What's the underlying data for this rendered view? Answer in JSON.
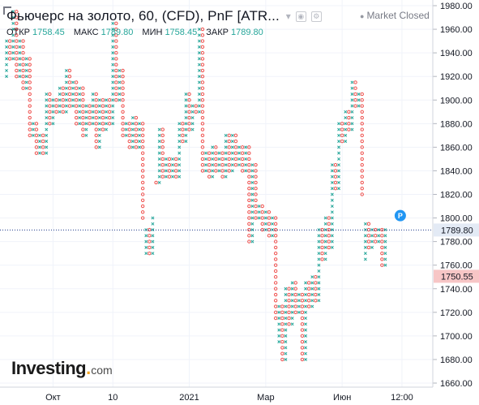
{
  "header": {
    "title": "Фьючерс на золото, 60, (CFD), PnF [ATR...",
    "market_status": "Market Closed",
    "ohlc": [
      {
        "label": "ОТКР",
        "value": "1758.45"
      },
      {
        "label": "МАКС",
        "value": "1789.80"
      },
      {
        "label": "МИН",
        "value": "1758.45"
      },
      {
        "label": "ЗАКР",
        "value": "1789.80"
      }
    ],
    "icons": [
      "dropdown-caret-icon",
      "eye-icon",
      "settings-box-icon",
      "status-dot-icon"
    ]
  },
  "logo": {
    "main": "Investing",
    "tld": "com"
  },
  "colors": {
    "up": "#26a69a",
    "down": "#ef5350",
    "price_line": "#1e3a8a",
    "price_tag_bg": "#e3eaf5",
    "low_tag_bg": "#f7c6c6",
    "grid": "#f0f3fa",
    "axis_text": "#131722",
    "badge": "#2196f3"
  },
  "chart_data": {
    "type": "point-and-figure",
    "y_ticks": [
      1660,
      1680,
      1700,
      1720,
      1740,
      1760,
      1780,
      1800,
      1820,
      1840,
      1860,
      1880,
      1900,
      1920,
      1940,
      1960,
      1980
    ],
    "y_tick_labels": [
      "1660.00",
      "1680.00",
      "1700.00",
      "1720.00",
      "1740.00",
      "1760.00",
      "1780.00",
      "1800.00",
      "1820.00",
      "1840.00",
      "1860.00",
      "1880.00",
      "1900.00",
      "1920.00",
      "1940.00",
      "1960.00",
      "1980.00"
    ],
    "ylim": [
      1655,
      1985
    ],
    "x_ticks": [
      {
        "label": "Окт",
        "col": 14
      },
      {
        "label": "10",
        "col": 32
      },
      {
        "label": "2021",
        "col": 55
      },
      {
        "label": "Мар",
        "col": 78
      },
      {
        "label": "Июн",
        "col": 101
      },
      {
        "label": "12:00",
        "col": 119
      }
    ],
    "n_columns": 120,
    "last_price": 1789.8,
    "last_price_label": "1789.80",
    "low_marker": 1750.55,
    "low_marker_label": "1750.55",
    "badge_label": "P",
    "columns": [
      {
        "t": "X",
        "lo": 1920,
        "hi": 1950
      },
      {
        "t": "O",
        "lo": 1935,
        "hi": 1950
      },
      {
        "t": "X",
        "lo": 1935,
        "hi": 1975
      },
      {
        "t": "O",
        "lo": 1920,
        "hi": 1975
      },
      {
        "t": "X",
        "lo": 1920,
        "hi": 1950
      },
      {
        "t": "O",
        "lo": 1910,
        "hi": 1950
      },
      {
        "t": "X",
        "lo": 1910,
        "hi": 1935
      },
      {
        "t": "O",
        "lo": 1870,
        "hi": 1935
      },
      {
        "t": "X",
        "lo": 1870,
        "hi": 1880
      },
      {
        "t": "O",
        "lo": 1855,
        "hi": 1880
      },
      {
        "t": "X",
        "lo": 1855,
        "hi": 1870
      },
      {
        "t": "O",
        "lo": 1855,
        "hi": 1870
      },
      {
        "t": "X",
        "lo": 1855,
        "hi": 1905
      },
      {
        "t": "O",
        "lo": 1880,
        "hi": 1905
      },
      {
        "t": "X",
        "lo": 1880,
        "hi": 1900
      },
      {
        "t": "O",
        "lo": 1890,
        "hi": 1900
      },
      {
        "t": "X",
        "lo": 1890,
        "hi": 1910
      },
      {
        "t": "O",
        "lo": 1890,
        "hi": 1910
      },
      {
        "t": "X",
        "lo": 1890,
        "hi": 1925
      },
      {
        "t": "O",
        "lo": 1895,
        "hi": 1925
      },
      {
        "t": "X",
        "lo": 1895,
        "hi": 1915
      },
      {
        "t": "O",
        "lo": 1880,
        "hi": 1915
      },
      {
        "t": "X",
        "lo": 1880,
        "hi": 1910
      },
      {
        "t": "O",
        "lo": 1870,
        "hi": 1910
      },
      {
        "t": "X",
        "lo": 1870,
        "hi": 1895
      },
      {
        "t": "O",
        "lo": 1880,
        "hi": 1895
      },
      {
        "t": "X",
        "lo": 1880,
        "hi": 1905
      },
      {
        "t": "O",
        "lo": 1860,
        "hi": 1905
      },
      {
        "t": "X",
        "lo": 1860,
        "hi": 1900
      },
      {
        "t": "O",
        "lo": 1875,
        "hi": 1900
      },
      {
        "t": "X",
        "lo": 1875,
        "hi": 1900
      },
      {
        "t": "O",
        "lo": 1880,
        "hi": 1900
      },
      {
        "t": "X",
        "lo": 1880,
        "hi": 1965
      },
      {
        "t": "O",
        "lo": 1900,
        "hi": 1965
      },
      {
        "t": "X",
        "lo": 1900,
        "hi": 1925
      },
      {
        "t": "O",
        "lo": 1870,
        "hi": 1925
      },
      {
        "t": "X",
        "lo": 1870,
        "hi": 1880
      },
      {
        "t": "O",
        "lo": 1860,
        "hi": 1880
      },
      {
        "t": "X",
        "lo": 1860,
        "hi": 1885
      },
      {
        "t": "O",
        "lo": 1860,
        "hi": 1885
      },
      {
        "t": "X",
        "lo": 1860,
        "hi": 1880
      },
      {
        "t": "O",
        "lo": 1800,
        "hi": 1880
      },
      {
        "t": "X",
        "lo": 1770,
        "hi": 1790
      },
      {
        "t": "O",
        "lo": 1770,
        "hi": 1790
      },
      {
        "t": "X",
        "lo": 1770,
        "hi": 1800
      },
      {
        "t": "O",
        "lo": 1830,
        "hi": 1830
      },
      {
        "t": "X",
        "lo": 1830,
        "hi": 1875
      },
      {
        "t": "O",
        "lo": 1835,
        "hi": 1875
      },
      {
        "t": "X",
        "lo": 1835,
        "hi": 1850
      },
      {
        "t": "O",
        "lo": 1835,
        "hi": 1850
      },
      {
        "t": "X",
        "lo": 1835,
        "hi": 1850
      },
      {
        "t": "O",
        "lo": 1835,
        "hi": 1850
      },
      {
        "t": "X",
        "lo": 1835,
        "hi": 1880
      },
      {
        "t": "O",
        "lo": 1865,
        "hi": 1880
      },
      {
        "t": "X",
        "lo": 1865,
        "hi": 1905
      },
      {
        "t": "O",
        "lo": 1875,
        "hi": 1905
      },
      {
        "t": "X",
        "lo": 1875,
        "hi": 1895
      },
      {
        "t": "O",
        "lo": 1890,
        "hi": 1895
      },
      {
        "t": "X",
        "lo": 1890,
        "hi": 1960
      },
      {
        "t": "O",
        "lo": 1840,
        "hi": 1960
      },
      {
        "t": "X",
        "lo": 1840,
        "hi": 1855
      },
      {
        "t": "O",
        "lo": 1835,
        "hi": 1855
      },
      {
        "t": "X",
        "lo": 1835,
        "hi": 1860
      },
      {
        "t": "O",
        "lo": 1840,
        "hi": 1860
      },
      {
        "t": "X",
        "lo": 1840,
        "hi": 1855
      },
      {
        "t": "O",
        "lo": 1835,
        "hi": 1855
      },
      {
        "t": "X",
        "lo": 1835,
        "hi": 1870
      },
      {
        "t": "O",
        "lo": 1840,
        "hi": 1870
      },
      {
        "t": "X",
        "lo": 1840,
        "hi": 1870
      },
      {
        "t": "O",
        "lo": 1845,
        "hi": 1870
      },
      {
        "t": "X",
        "lo": 1845,
        "hi": 1860
      },
      {
        "t": "O",
        "lo": 1840,
        "hi": 1860
      },
      {
        "t": "X",
        "lo": 1840,
        "hi": 1860
      },
      {
        "t": "O",
        "lo": 1780,
        "hi": 1860
      },
      {
        "t": "X",
        "lo": 1780,
        "hi": 1845
      },
      {
        "t": "O",
        "lo": 1800,
        "hi": 1845
      },
      {
        "t": "X",
        "lo": 1800,
        "hi": 1810
      },
      {
        "t": "O",
        "lo": 1790,
        "hi": 1810
      },
      {
        "t": "X",
        "lo": 1790,
        "hi": 1805
      },
      {
        "t": "O",
        "lo": 1785,
        "hi": 1805
      },
      {
        "t": "X",
        "lo": 1785,
        "hi": 1800
      },
      {
        "t": "O",
        "lo": 1715,
        "hi": 1800
      },
      {
        "t": "X",
        "lo": 1695,
        "hi": 1725
      },
      {
        "t": "O",
        "lo": 1680,
        "hi": 1725
      },
      {
        "t": "X",
        "lo": 1680,
        "hi": 1740
      },
      {
        "t": "O",
        "lo": 1710,
        "hi": 1740
      },
      {
        "t": "X",
        "lo": 1710,
        "hi": 1745
      },
      {
        "t": "O",
        "lo": 1720,
        "hi": 1745
      },
      {
        "t": "X",
        "lo": 1720,
        "hi": 1735
      },
      {
        "t": "O",
        "lo": 1680,
        "hi": 1735
      },
      {
        "t": "X",
        "lo": 1680,
        "hi": 1745
      },
      {
        "t": "O",
        "lo": 1725,
        "hi": 1745
      },
      {
        "t": "X",
        "lo": 1725,
        "hi": 1750
      },
      {
        "t": "O",
        "lo": 1730,
        "hi": 1750
      },
      {
        "t": "X",
        "lo": 1730,
        "hi": 1790
      },
      {
        "t": "O",
        "lo": 1765,
        "hi": 1790
      },
      {
        "t": "X",
        "lo": 1765,
        "hi": 1800
      },
      {
        "t": "O",
        "lo": 1775,
        "hi": 1800
      },
      {
        "t": "X",
        "lo": 1775,
        "hi": 1845
      },
      {
        "t": "O",
        "lo": 1825,
        "hi": 1845
      },
      {
        "t": "X",
        "lo": 1825,
        "hi": 1880
      },
      {
        "t": "O",
        "lo": 1865,
        "hi": 1880
      },
      {
        "t": "X",
        "lo": 1865,
        "hi": 1890
      },
      {
        "t": "O",
        "lo": 1875,
        "hi": 1890
      },
      {
        "t": "X",
        "lo": 1875,
        "hi": 1915
      },
      {
        "t": "O",
        "lo": 1895,
        "hi": 1915
      },
      {
        "t": "X",
        "lo": 1895,
        "hi": 1905
      },
      {
        "t": "O",
        "lo": 1820,
        "hi": 1905
      },
      {
        "t": "X",
        "lo": 1765,
        "hi": 1795
      },
      {
        "t": "O",
        "lo": 1775,
        "hi": 1795
      },
      {
        "t": "X",
        "lo": 1775,
        "hi": 1790
      },
      {
        "t": "O",
        "lo": 1780,
        "hi": 1790
      },
      {
        "t": "X",
        "lo": 1780,
        "hi": 1790
      },
      {
        "t": "O",
        "lo": 1760,
        "hi": 1790
      },
      {
        "t": "X",
        "lo": 1760,
        "hi": 1790
      }
    ]
  }
}
